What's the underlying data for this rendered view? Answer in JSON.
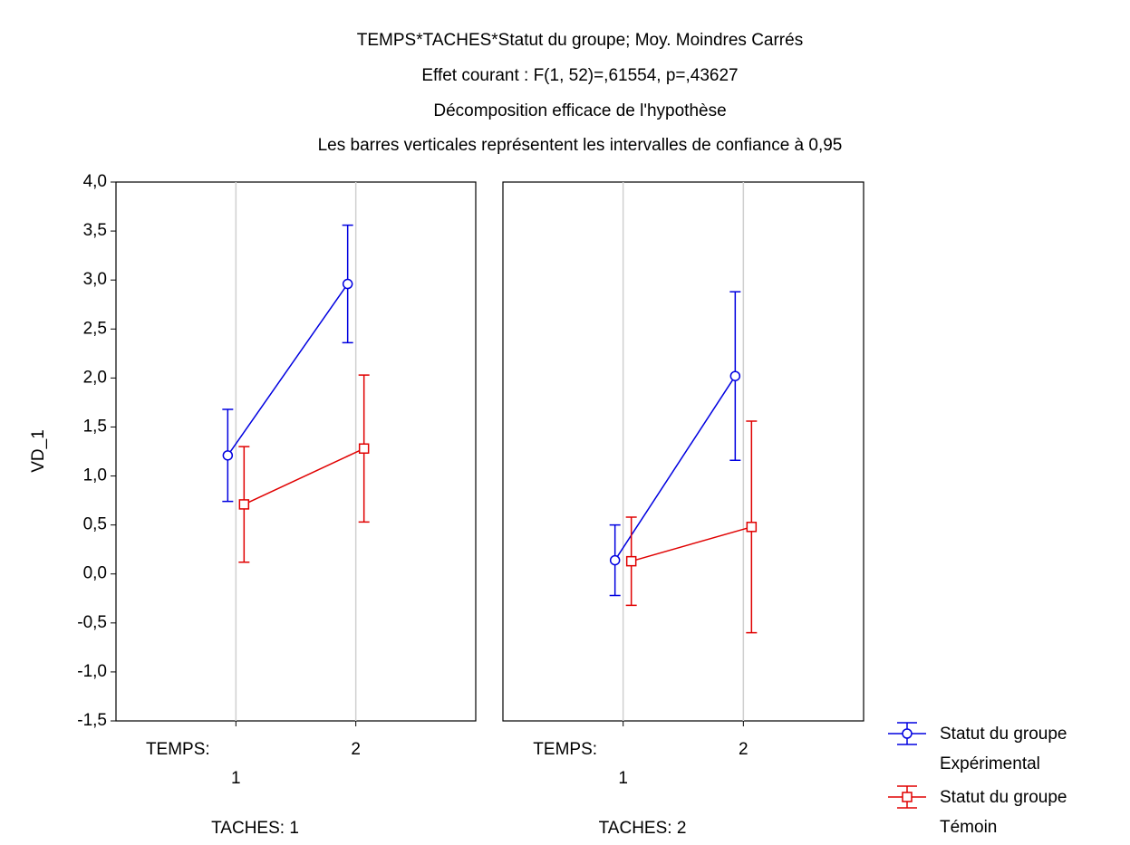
{
  "chart_data": {
    "type": "line",
    "title": [
      "TEMPS*TACHES*Statut du groupe; Moy. Moindres Carrés",
      "Effet courant : F(1, 52)=,61554, p=,43627",
      "Décomposition efficace de l'hypothèse",
      "Les barres verticales représentent les intervalles de confiance à 0,95"
    ],
    "ylabel": "VD_1",
    "xlabel": "TEMPS:",
    "ylim": [
      -1.5,
      4.0
    ],
    "yticks": [
      {
        "value": 4.0,
        "label": "4,0"
      },
      {
        "value": 3.5,
        "label": "3,5"
      },
      {
        "value": 3.0,
        "label": "3,0"
      },
      {
        "value": 2.5,
        "label": "2,5"
      },
      {
        "value": 2.0,
        "label": "2,0"
      },
      {
        "value": 1.5,
        "label": "1,5"
      },
      {
        "value": 1.0,
        "label": "1,0"
      },
      {
        "value": 0.5,
        "label": "0,5"
      },
      {
        "value": 0.0,
        "label": "0,0"
      },
      {
        "value": -0.5,
        "label": "-0,5"
      },
      {
        "value": -1.0,
        "label": "-1,0"
      },
      {
        "value": -1.5,
        "label": "-1,5"
      }
    ],
    "grid": true,
    "legend": [
      {
        "name": "Statut du groupe\nExpérimental",
        "color": "#0000e0",
        "marker": "circle"
      },
      {
        "name": "Statut du groupe\nTémoin",
        "color": "#e00000",
        "marker": "square"
      }
    ],
    "panels": [
      {
        "title": "TACHES: 1",
        "categories": [
          "1",
          "2"
        ],
        "series": [
          {
            "values": [
              1.21,
              2.96
            ],
            "errors": [
              0.47,
              0.6
            ]
          },
          {
            "values": [
              0.71,
              1.28
            ],
            "errors": [
              0.59,
              0.75
            ]
          }
        ]
      },
      {
        "title": "TACHES: 2",
        "categories": [
          "1",
          "2"
        ],
        "series": [
          {
            "values": [
              0.14,
              2.02
            ],
            "errors": [
              0.36,
              0.86
            ]
          },
          {
            "values": [
              0.13,
              0.48
            ],
            "errors": [
              0.45,
              1.08
            ]
          }
        ]
      }
    ]
  }
}
